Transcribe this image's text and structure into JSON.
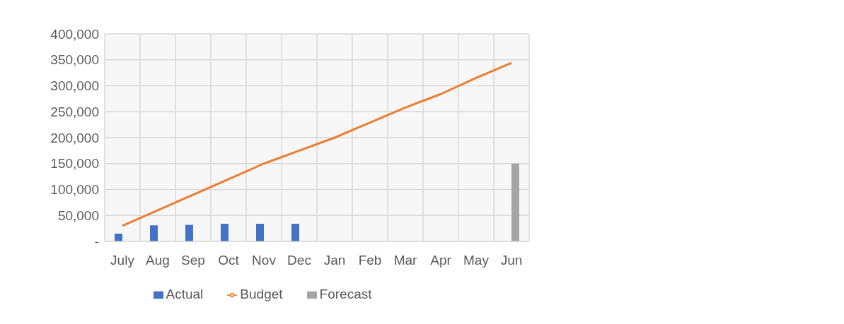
{
  "chart_data": {
    "type": "bar",
    "categories": [
      "July",
      "Aug",
      "Sep",
      "Oct",
      "Nov",
      "Dec",
      "Jan",
      "Feb",
      "Mar",
      "Apr",
      "May",
      "Jun"
    ],
    "series": [
      {
        "name": "Actual",
        "color": "#4472c4",
        "values": [
          15000,
          31000,
          32000,
          34000,
          34000,
          34000,
          null,
          null,
          null,
          null,
          null,
          null
        ]
      },
      {
        "name": "Forecast",
        "color": "#a5a5a5",
        "values": [
          null,
          null,
          null,
          null,
          null,
          null,
          null,
          null,
          null,
          null,
          null,
          150000
        ]
      },
      {
        "name": "Budget",
        "type": "line",
        "color": "#ed7d31",
        "values": [
          30000,
          60000,
          90000,
          120000,
          150000,
          175000,
          200000,
          229000,
          258000,
          284000,
          315000,
          344000
        ]
      }
    ],
    "ylim": [
      0,
      400000
    ],
    "yticks": [
      {
        "value": 0,
        "label": "-"
      },
      {
        "value": 50000,
        "label": "50,000"
      },
      {
        "value": 100000,
        "label": "100,000"
      },
      {
        "value": 150000,
        "label": "150,000"
      },
      {
        "value": 200000,
        "label": "200,000"
      },
      {
        "value": 250000,
        "label": "250,000"
      },
      {
        "value": 300000,
        "label": "300,000"
      },
      {
        "value": 350000,
        "label": "350,000"
      },
      {
        "value": 400000,
        "label": "400,000"
      }
    ],
    "grid": true,
    "legend": "bottom",
    "marker": "none"
  }
}
